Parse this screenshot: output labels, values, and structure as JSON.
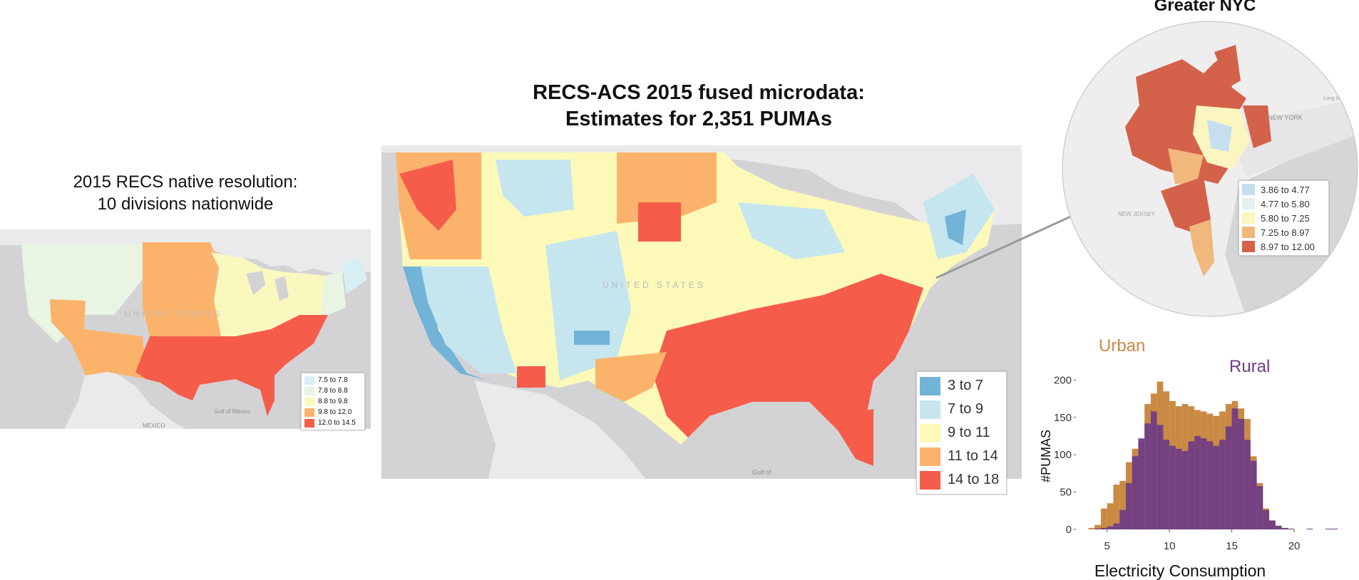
{
  "left_panel": {
    "title_line1": "2015 RECS native resolution:",
    "title_line2": "10 divisions nationwide",
    "map_labels": {
      "country": "UNITED STATES",
      "mexico": "MÉXICO",
      "gulf": "Gulf of Mexico"
    },
    "legend": [
      {
        "label": "7.5 to 7.8",
        "color": "#d7eef3"
      },
      {
        "label": "7.8 to 8.8",
        "color": "#e9f4e2"
      },
      {
        "label": "8.8 to 9.8",
        "color": "#fbf8bf"
      },
      {
        "label": "9.8 to 12.0",
        "color": "#fbb36b"
      },
      {
        "label": "12.0 to 14.5",
        "color": "#f65c4a"
      }
    ]
  },
  "middle_panel": {
    "title_line1": "RECS-ACS 2015 fused microdata:",
    "title_line2": "Estimates for 2,351 PUMAs",
    "map_labels": {
      "country": "UNITED STATES",
      "gulf": "Gulf of"
    },
    "legend": [
      {
        "label": "3 to 7",
        "color": "#72b3d8"
      },
      {
        "label": "7 to 9",
        "color": "#c5e6ef"
      },
      {
        "label": "9 to 11",
        "color": "#fcf9b9"
      },
      {
        "label": "11 to 14",
        "color": "#fbb36b"
      },
      {
        "label": "14 to 18",
        "color": "#f65c4a"
      }
    ]
  },
  "nyc_panel": {
    "title": "Greater NYC",
    "map_labels": {
      "new_york": "NEW YORK",
      "new_jersey": "NEW JERSEY",
      "long_island": "Long Island"
    },
    "legend": [
      {
        "label": "3.86 to 4.77",
        "color": "#c5dfee"
      },
      {
        "label": "4.77 to 5.80",
        "color": "#e4eff2"
      },
      {
        "label": "5.80 to 7.25",
        "color": "#fbf6bf"
      },
      {
        "label": "7.25 to 8.97",
        "color": "#f1b87d"
      },
      {
        "label": "8.97 to 12.00",
        "color": "#d4624a"
      }
    ]
  },
  "chart_data": {
    "type": "bar",
    "title": "",
    "xlabel": "Electricity Consumption",
    "ylabel": "#PUMAS",
    "xlim": [
      2.5,
      24
    ],
    "ylim": [
      0,
      210
    ],
    "xticks": [
      5,
      10,
      15,
      20
    ],
    "yticks": [
      0,
      50,
      100,
      150,
      200
    ],
    "bin_width": 0.5,
    "bin_start": 3.5,
    "annotations": [
      {
        "text": "Urban",
        "color": "#c98a44"
      },
      {
        "text": "Rural",
        "color": "#6e3b87"
      }
    ],
    "series": [
      {
        "name": "Urban",
        "color": "#c98a44",
        "values": [
          2,
          6,
          28,
          35,
          60,
          65,
          90,
          108,
          118,
          168,
          182,
          198,
          185,
          172,
          165,
          168,
          165,
          160,
          158,
          155,
          152,
          158,
          168,
          172,
          162,
          148,
          98,
          62,
          28,
          12,
          4,
          2,
          1,
          0,
          0,
          0,
          0,
          0,
          0,
          0
        ]
      },
      {
        "name": "Rural",
        "color": "#6e3b87",
        "values": [
          0,
          1,
          2,
          4,
          8,
          26,
          62,
          98,
          122,
          142,
          158,
          140,
          120,
          112,
          108,
          105,
          118,
          125,
          122,
          118,
          112,
          120,
          138,
          162,
          148,
          120,
          92,
          58,
          26,
          12,
          5,
          2,
          1,
          0,
          0,
          1,
          0,
          0,
          1,
          1
        ]
      }
    ]
  }
}
